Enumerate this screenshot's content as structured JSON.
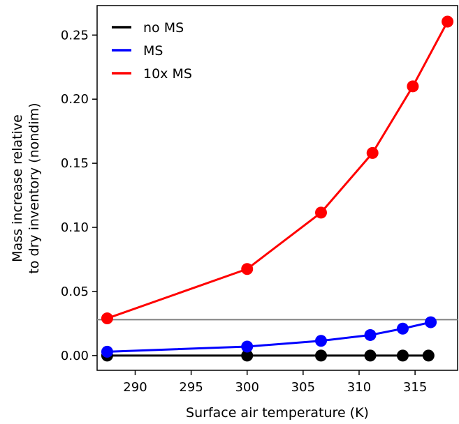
{
  "chart_data": {
    "type": "line",
    "xlabel": "Surface air temperature (K)",
    "ylabel": [
      "Mass increase relative",
      "to dry inventory (nondim)"
    ],
    "xlim": [
      286.6,
      318.8
    ],
    "ylim": [
      -0.0115,
      0.273
    ],
    "xticks": [
      290,
      295,
      300,
      305,
      310,
      315
    ],
    "yticks": [
      0.0,
      0.05,
      0.1,
      0.15,
      0.2,
      0.25
    ],
    "xtick_labels": [
      "290",
      "295",
      "300",
      "305",
      "310",
      "315"
    ],
    "ytick_labels": [
      "0.00",
      "0.05",
      "0.10",
      "0.15",
      "0.20",
      "0.25"
    ],
    "grid": false,
    "legend_position": "top-left",
    "reference_line": {
      "orientation": "horizontal",
      "y": 0.028,
      "color": "#808080"
    },
    "series": [
      {
        "name": "no MS",
        "color": "#000000",
        "x": [
          287.5,
          300.0,
          306.6,
          311.0,
          313.9,
          316.2
        ],
        "y": [
          0.0,
          0.0,
          0.0,
          0.0,
          0.0,
          0.0
        ]
      },
      {
        "name": "MS",
        "color": "#0000ff",
        "x": [
          287.5,
          300.0,
          306.6,
          311.0,
          313.9,
          316.4
        ],
        "y": [
          0.003,
          0.007,
          0.0115,
          0.016,
          0.021,
          0.026
        ]
      },
      {
        "name": "10x MS",
        "color": "#ff0000",
        "x": [
          287.5,
          300.0,
          306.6,
          311.2,
          314.8,
          317.9
        ],
        "y": [
          0.029,
          0.0675,
          0.1115,
          0.158,
          0.21,
          0.2605
        ]
      }
    ]
  }
}
